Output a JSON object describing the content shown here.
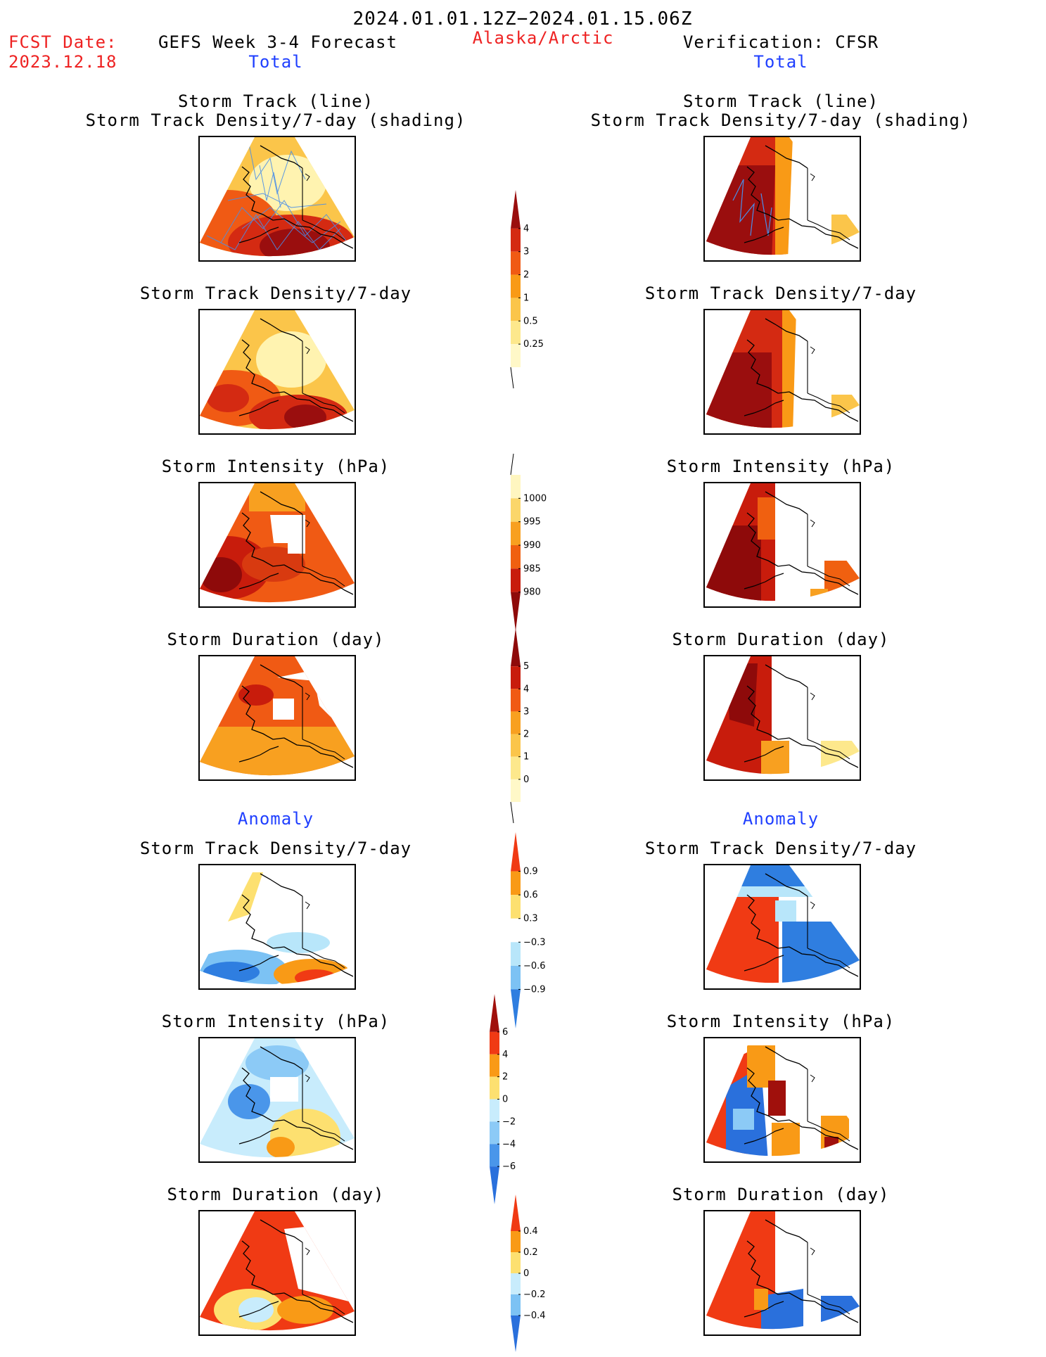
{
  "header": {
    "valid_period": "2024.01.01.12Z−2024.01.15.06Z",
    "fcst_label": "FCST Date:",
    "fcst_date": "2023.12.18",
    "left_title": "GEFS Week 3-4 Forecast",
    "region": "Alaska/Arctic",
    "right_title": "Verification: CFSR"
  },
  "sections": {
    "total": "Total",
    "anomaly": "Anomaly"
  },
  "panels": {
    "track_line": "Storm Track (line)",
    "track_density_shading": "Storm Track Density/7-day (shading)",
    "track_density": "Storm Track Density/7-day",
    "intensity": "Storm Intensity (hPa)",
    "duration": "Storm Duration (day)"
  },
  "colorbars": {
    "density_total": {
      "ticks": [
        "4",
        "3",
        "2",
        "1",
        "0.5",
        "0.25"
      ],
      "colors": [
        "#9a0e0e",
        "#d42a12",
        "#f05a14",
        "#f99a16",
        "#fbc54a",
        "#fde88c",
        "#fff8c8"
      ]
    },
    "intensity_total": {
      "ticks": [
        "1000",
        "995",
        "990",
        "985",
        "980"
      ],
      "colors": [
        "#fff6c0",
        "#fbd66a",
        "#f8a020",
        "#f06010",
        "#c81c0c",
        "#8e0a0a"
      ]
    },
    "duration_total": {
      "ticks": [
        "5",
        "4",
        "3",
        "2",
        "1",
        "0"
      ],
      "colors": [
        "#8e0a0a",
        "#c81c0c",
        "#f05a14",
        "#f8a020",
        "#fbc54a",
        "#fde88c",
        "#fff8c8"
      ]
    },
    "density_anom": {
      "ticks": [
        "0.9",
        "0.6",
        "0.3",
        "−0.3",
        "−0.6",
        "−0.9"
      ],
      "colors": [
        "#f03a14",
        "#f99a16",
        "#fde070",
        "#ffffff",
        "#b8e6fa",
        "#7cc2f4",
        "#2f7ee0"
      ]
    },
    "intensity_anom": {
      "ticks": [
        "6",
        "4",
        "2",
        "0",
        "−2",
        "−4",
        "−6"
      ],
      "colors": [
        "#a0100c",
        "#f03a14",
        "#f99a16",
        "#fde070",
        "#c8ecfc",
        "#8ccaf6",
        "#4a96ea",
        "#2a70dc"
      ]
    },
    "duration_anom": {
      "ticks": [
        "0.4",
        "0.2",
        "0",
        "−0.2",
        "−0.4"
      ],
      "colors": [
        "#f03a14",
        "#f99a16",
        "#fde070",
        "#c8ecfc",
        "#7cc2f4",
        "#2a70dc"
      ]
    }
  }
}
